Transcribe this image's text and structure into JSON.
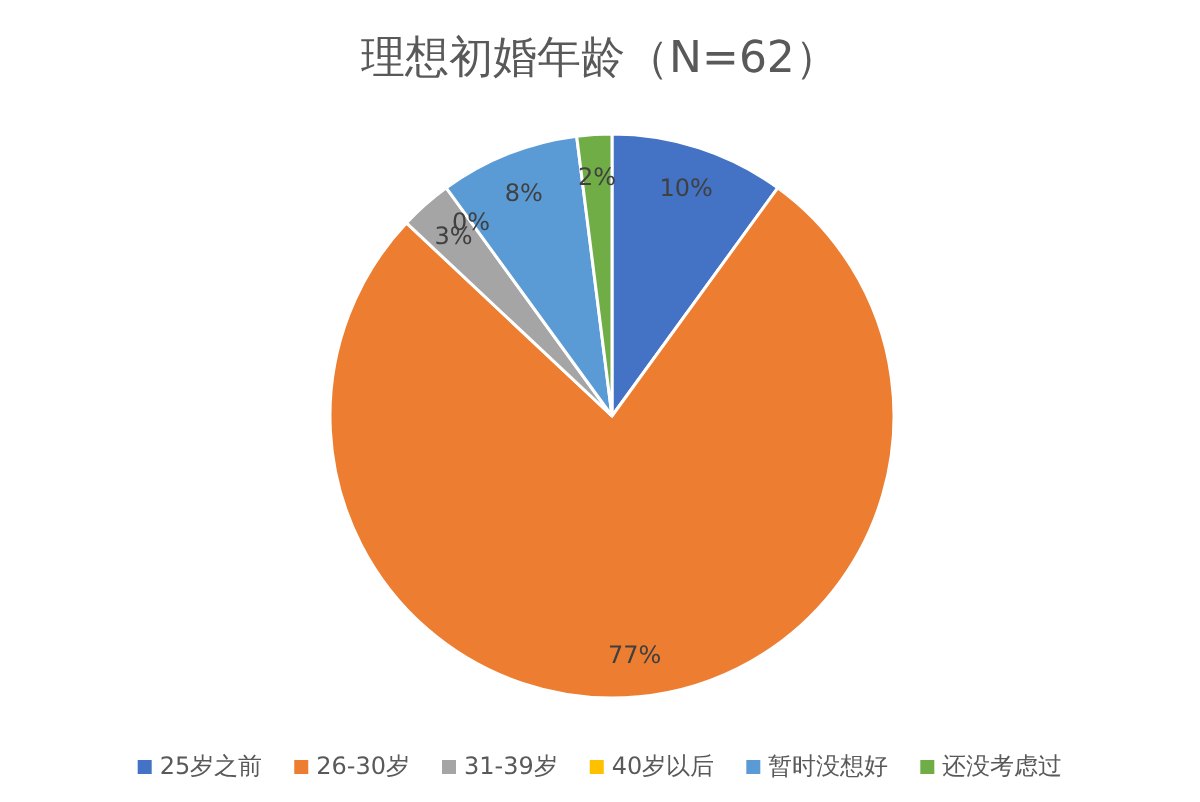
{
  "chart_data": {
    "type": "pie",
    "title": "理想初婚年龄（N=62）",
    "categories": [
      "25岁之前",
      "26-30岁",
      "31-39岁",
      "40岁以后",
      "暂时没想好",
      "还没考虑过"
    ],
    "values": [
      10,
      77,
      3,
      0,
      8,
      2
    ],
    "value_labels": [
      "10%",
      "77%",
      "3%",
      "0%",
      "8%",
      "2%"
    ],
    "colors": [
      "#4472c4",
      "#ed7d31",
      "#a5a5a5",
      "#ffc000",
      "#5b9bd5",
      "#70ad47"
    ],
    "legend": "bottom"
  }
}
